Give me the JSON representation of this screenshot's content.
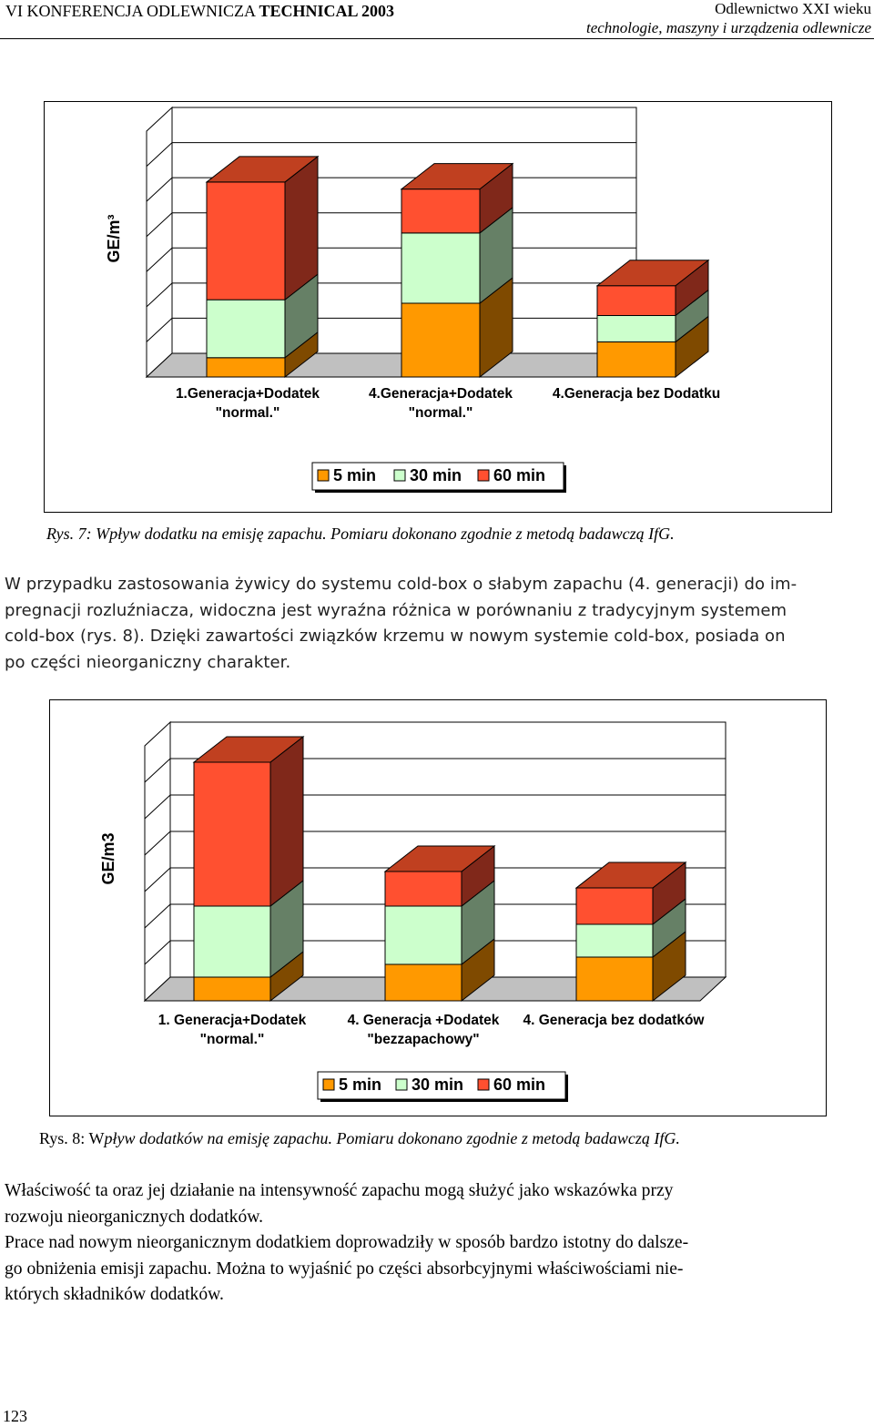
{
  "header": {
    "conference_prefix": "VI  KONFERENCJA ODLEWNICZA ",
    "conference_bold": "TECHNICAL 2003",
    "journal": "Odlewnictwo XXI wieku",
    "subtitle": "technologie,  maszyny i urządzenia odlewnicze"
  },
  "figure7": {
    "ylabel": "GE/m³",
    "category_labels": [
      [
        "1.Generacja+Dodatek",
        "\"normal.\""
      ],
      [
        "4.Generacja+Dodatek",
        "\"normal.\""
      ],
      [
        "4.Generacja bez Dodatku"
      ]
    ],
    "legend": [
      "5 min",
      "30 min",
      "60 min"
    ],
    "caption": "Rys. 7: Wpływ dodatku na emisję zapachu. Pomiaru dokonano zgodnie z metodą badawczą IfG."
  },
  "paragraph1": [
    "W przypadku zastosowania żywicy do systemu cold-box o słabym zapachu (4. generacji) do im-",
    "pregnacji rozluźniacza, widoczna jest wyraźna różnica w porównaniu z tradycyjnym systemem",
    "cold-box (rys. 8). Dzięki zawartości związków krzemu w nowym systemie cold-box, posiada on",
    "po części nieorganiczny charakter."
  ],
  "figure8": {
    "ylabel": "GE/m3",
    "category_labels": [
      [
        "1. Generacja+Dodatek",
        "\"normal.\""
      ],
      [
        "4. Generacja +Dodatek",
        "\"bezzapachowy\""
      ],
      [
        "4. Generacja bez dodatków"
      ]
    ],
    "legend": [
      "5 min",
      "30 min",
      "60 min"
    ],
    "caption_prefix": "Rys. 8: W",
    "caption_rest": "pływ dodatków na emisję zapachu. Pomiaru dokonano zgodnie z metodą badawczą IfG."
  },
  "paragraph2": [
    "Właściwość ta oraz jej działanie  na intensywność zapachu mogą służyć jako wskazówka przy",
    "rozwoju nieorganicznych dodatków."
  ],
  "paragraph3": [
    "Prace nad nowym nieorganicznym dodatkiem doprowadziły w sposób bardzo istotny do dalsze-",
    "go obniżenia emisji zapachu. Można to wyjaśnić po części  absorbcyjnymi właściwościami nie-",
    "których składników dodatków."
  ],
  "page_number": "123",
  "colors": {
    "min5": "#FF9900",
    "min30": "#CCFFCC",
    "min60": "#FF5030"
  },
  "chart_data": [
    {
      "type": "bar",
      "stacked": true,
      "three_d": true,
      "categories": [
        "1.Generacja+Dodatek \"normal.\"",
        "4.Generacja+Dodatek \"normal.\"",
        "4.Generacja bez Dodatku"
      ],
      "series": [
        {
          "name": "5 min",
          "values": [
            1.1,
            4.2,
            2.0
          ]
        },
        {
          "name": "30 min",
          "values": [
            3.3,
            4.0,
            1.5
          ]
        },
        {
          "name": "60 min",
          "values": [
            6.7,
            2.5,
            1.7
          ]
        }
      ],
      "ylabel": "GE/m³",
      "ylim": [
        0,
        14
      ],
      "grid": true,
      "legend_position": "bottom"
    },
    {
      "type": "bar",
      "stacked": true,
      "three_d": true,
      "categories": [
        "1. Generacja+Dodatek \"normal.\"",
        "4. Generacja +Dodatek \"bezzapachowy\"",
        "4. Generacja bez dodatków"
      ],
      "series": [
        {
          "name": "5 min",
          "values": [
            1.3,
            2.0,
            2.4
          ]
        },
        {
          "name": "30 min",
          "values": [
            3.9,
            3.2,
            1.8
          ]
        },
        {
          "name": "60 min",
          "values": [
            7.9,
            1.9,
            2.0
          ]
        }
      ],
      "ylabel": "GE/m3",
      "ylim": [
        0,
        14
      ],
      "grid": true,
      "legend_position": "bottom"
    }
  ]
}
